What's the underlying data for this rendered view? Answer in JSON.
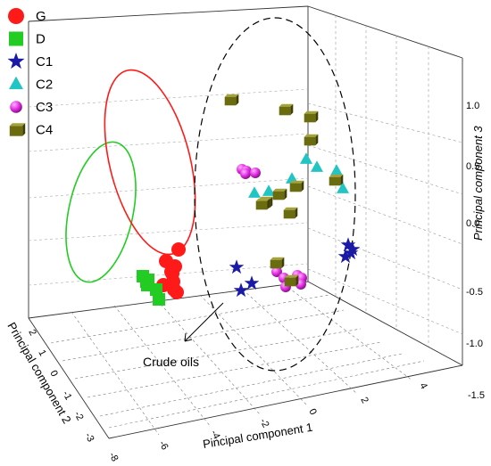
{
  "chart_data": {
    "type": "scatter",
    "dimensions": 3,
    "xlabel": "Pincipal component 1",
    "ylabel": "Principal component 2",
    "zlabel": "Principal component 3",
    "x_ticks": [
      "-8",
      "-6",
      "-4",
      "-2",
      "0",
      "2",
      "4"
    ],
    "y_ticks": [
      "-3",
      "-2",
      "-1",
      "0",
      "1",
      "2"
    ],
    "z_ticks": [
      "-1.5",
      "-1.0",
      "-0.5",
      "0.0",
      "0.5",
      "1.0"
    ],
    "annotation": "Crude oils",
    "legend_position": "top-left",
    "series": [
      {
        "name": "G",
        "marker": "circle",
        "color": "#ff1a1a",
        "points": [
          [
            200,
            40
          ],
          [
            186,
            53
          ],
          [
            196,
            59
          ],
          [
            192,
            65
          ],
          [
            193,
            67
          ],
          [
            194,
            76
          ],
          [
            183,
            80
          ],
          [
            195,
            85
          ],
          [
            198,
            88
          ]
        ]
      },
      {
        "name": "D",
        "marker": "square",
        "color": "#22cc22",
        "points": [
          [
            160,
            70
          ],
          [
            166,
            74
          ],
          [
            164,
            76
          ],
          [
            165,
            80
          ],
          [
            175,
            85
          ],
          [
            178,
            96
          ]
        ]
      },
      {
        "name": "C1",
        "marker": "star",
        "color": "#1a1aa6",
        "points": [
          [
            265,
            60
          ],
          [
            282,
            78
          ],
          [
            270,
            86
          ],
          [
            390,
            35
          ],
          [
            395,
            40
          ],
          [
            393,
            44
          ],
          [
            387,
            48
          ]
        ]
      },
      {
        "name": "C2",
        "marker": "triangle",
        "color": "#22c4c4",
        "points": [
          [
            285,
            -23
          ],
          [
            301,
            -25
          ],
          [
            327,
            -39
          ],
          [
            343,
            -61
          ],
          [
            355,
            -52
          ],
          [
            377,
            -48
          ],
          [
            384,
            -28
          ]
        ]
      },
      {
        "name": "C3",
        "marker": "sphere",
        "color": "#e633e6",
        "points": [
          [
            271,
            -50
          ],
          [
            276,
            -48
          ],
          [
            275,
            -45
          ],
          [
            286,
            -46
          ],
          [
            310,
            65
          ],
          [
            318,
            72
          ],
          [
            320,
            82
          ],
          [
            333,
            69
          ],
          [
            338,
            72
          ],
          [
            337,
            79
          ]
        ]
      },
      {
        "name": "C4",
        "marker": "cube",
        "color": "#6b6b0f",
        "points": [
          [
            258,
            -128
          ],
          [
            319,
            -117
          ],
          [
            347,
            -109
          ],
          [
            347,
            -83
          ],
          [
            375,
            -38
          ],
          [
            331,
            -31
          ],
          [
            312,
            -22
          ],
          [
            296,
            -13
          ],
          [
            293,
            -11
          ],
          [
            309,
            55
          ],
          [
            324,
            -1
          ],
          [
            325,
            75
          ]
        ]
      }
    ]
  }
}
